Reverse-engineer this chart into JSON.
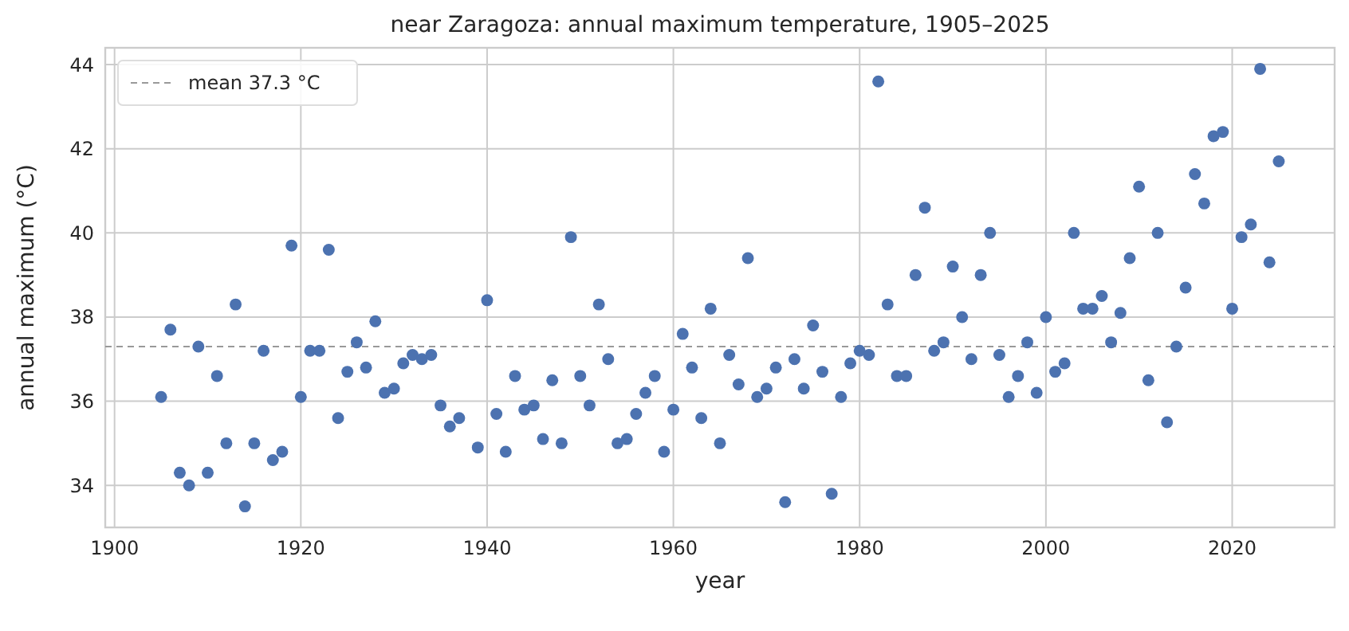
{
  "chart_data": {
    "type": "scatter",
    "title": "near Zaragoza: annual maximum temperature, 1905–2025",
    "xlabel": "year",
    "ylabel": "annual maximum (°C)",
    "x": [
      1905,
      1906,
      1907,
      1908,
      1909,
      1910,
      1911,
      1912,
      1913,
      1914,
      1915,
      1916,
      1917,
      1918,
      1919,
      1920,
      1921,
      1922,
      1923,
      1924,
      1925,
      1926,
      1927,
      1928,
      1929,
      1930,
      1931,
      1932,
      1933,
      1934,
      1935,
      1936,
      1937,
      1939,
      1940,
      1941,
      1942,
      1943,
      1944,
      1945,
      1946,
      1947,
      1948,
      1949,
      1950,
      1951,
      1952,
      1953,
      1954,
      1955,
      1956,
      1957,
      1958,
      1959,
      1960,
      1961,
      1962,
      1963,
      1964,
      1965,
      1966,
      1967,
      1968,
      1969,
      1970,
      1971,
      1972,
      1973,
      1974,
      1975,
      1976,
      1977,
      1978,
      1979,
      1980,
      1981,
      1982,
      1983,
      1984,
      1985,
      1986,
      1987,
      1988,
      1989,
      1990,
      1991,
      1992,
      1993,
      1994,
      1995,
      1996,
      1997,
      1998,
      1999,
      2000,
      2001,
      2002,
      2003,
      2004,
      2005,
      2006,
      2007,
      2008,
      2009,
      2010,
      2011,
      2012,
      2013,
      2014,
      2015,
      2016,
      2017,
      2018,
      2019,
      2020,
      2021,
      2022,
      2023,
      2024,
      2025
    ],
    "series": [
      {
        "color": "#4c72b0",
        "values": [
          36.1,
          37.7,
          34.3,
          34.0,
          37.3,
          34.3,
          36.6,
          35.0,
          38.3,
          33.5,
          35.0,
          37.2,
          34.6,
          34.8,
          39.7,
          36.1,
          37.2,
          37.2,
          39.6,
          35.6,
          36.7,
          37.4,
          36.8,
          37.9,
          36.2,
          36.3,
          36.9,
          37.1,
          37.0,
          37.1,
          35.9,
          35.4,
          35.6,
          34.9,
          38.4,
          35.7,
          34.8,
          36.6,
          35.8,
          35.9,
          35.1,
          36.5,
          35.0,
          39.9,
          36.6,
          35.9,
          38.3,
          37.0,
          35.0,
          35.1,
          35.7,
          36.2,
          36.6,
          34.8,
          35.8,
          37.6,
          36.8,
          35.6,
          38.2,
          35.0,
          37.1,
          36.4,
          39.4,
          36.1,
          36.3,
          36.8,
          33.6,
          37.0,
          36.3,
          37.8,
          36.7,
          33.8,
          36.1,
          36.9,
          37.2,
          37.1,
          43.6,
          38.3,
          36.6,
          36.6,
          39.0,
          40.6,
          37.2,
          37.4,
          39.2,
          38.0,
          37.0,
          39.0,
          40.0,
          37.1,
          36.1,
          36.6,
          37.4,
          36.2,
          38.0,
          36.7,
          36.9,
          40.0,
          38.2,
          38.2,
          38.5,
          37.4,
          38.1,
          39.4,
          41.1,
          36.5,
          40.0,
          35.5,
          37.3,
          38.7,
          41.4,
          40.7,
          42.3,
          42.4,
          38.2,
          39.9,
          40.2,
          43.9,
          39.3,
          41.7
        ]
      }
    ],
    "xlim": [
      1899,
      2031
    ],
    "ylim": [
      33,
      44.4
    ],
    "xticks": [
      1900,
      1920,
      1940,
      1960,
      1980,
      2000,
      2020
    ],
    "yticks": [
      34,
      36,
      38,
      40,
      42,
      44
    ],
    "ref_lines": [
      {
        "axis": "y",
        "value": 37.3,
        "label": "mean 37.3 °C",
        "color": "#999999",
        "line_style": "dashed"
      }
    ],
    "grid": true,
    "legend": "top left",
    "marker": "circle"
  }
}
